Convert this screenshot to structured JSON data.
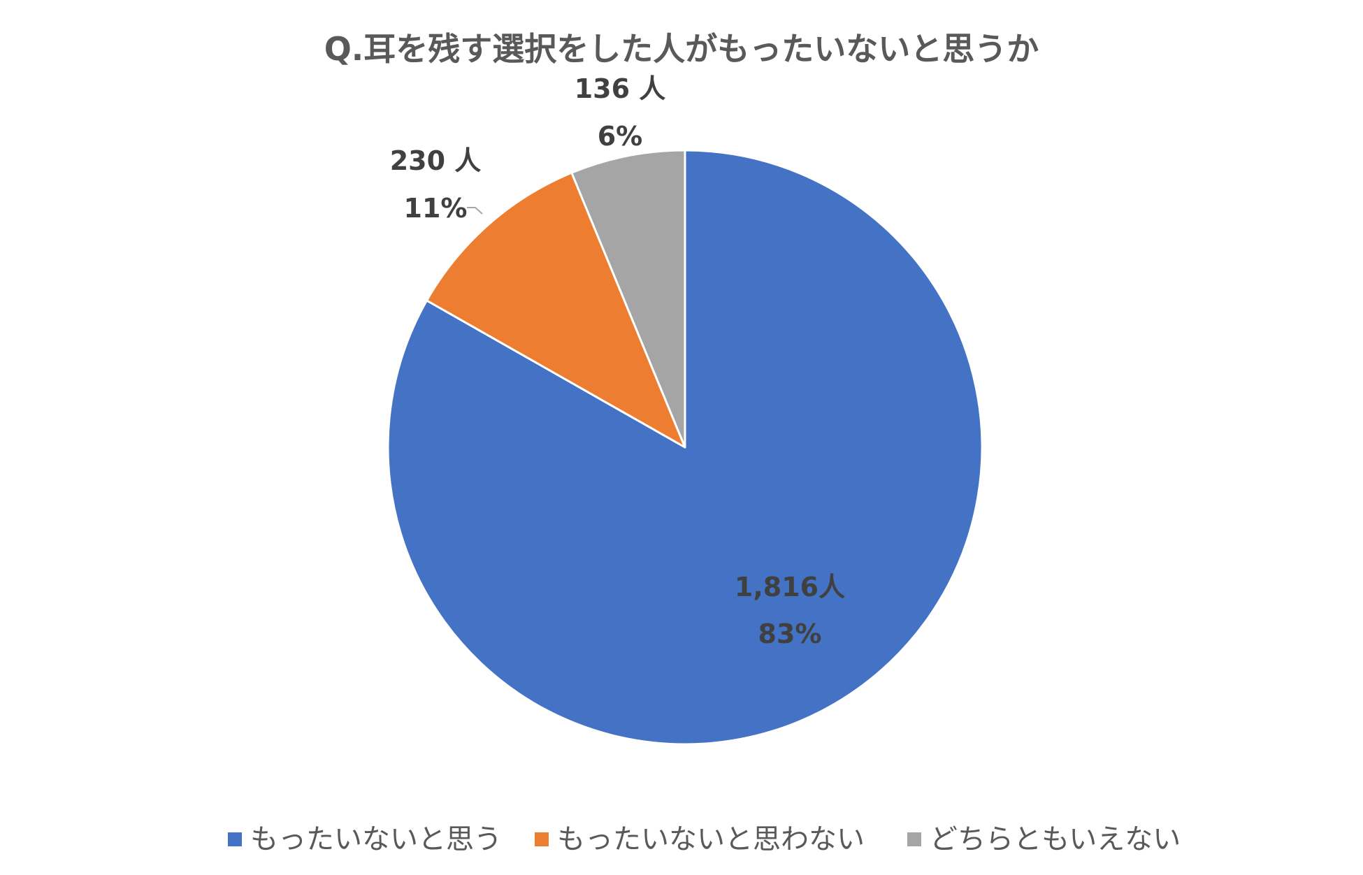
{
  "chart_data": {
    "type": "pie",
    "title": "Q.耳を残す選択をした人がもったいないと思うか",
    "categories": [
      "もったいないと思う",
      "もったいないと思わない",
      "どちらともいえない"
    ],
    "values": [
      1816,
      230,
      136
    ],
    "count_labels": [
      "1,816人",
      "230 人",
      "136 人"
    ],
    "percent_labels": [
      "83%",
      "11%",
      "6%"
    ],
    "colors": [
      "#4472C4",
      "#ED7D31",
      "#A5A5A5"
    ],
    "legend_position": "bottom",
    "start_angle": "12 o'clock",
    "direction": "clockwise"
  }
}
